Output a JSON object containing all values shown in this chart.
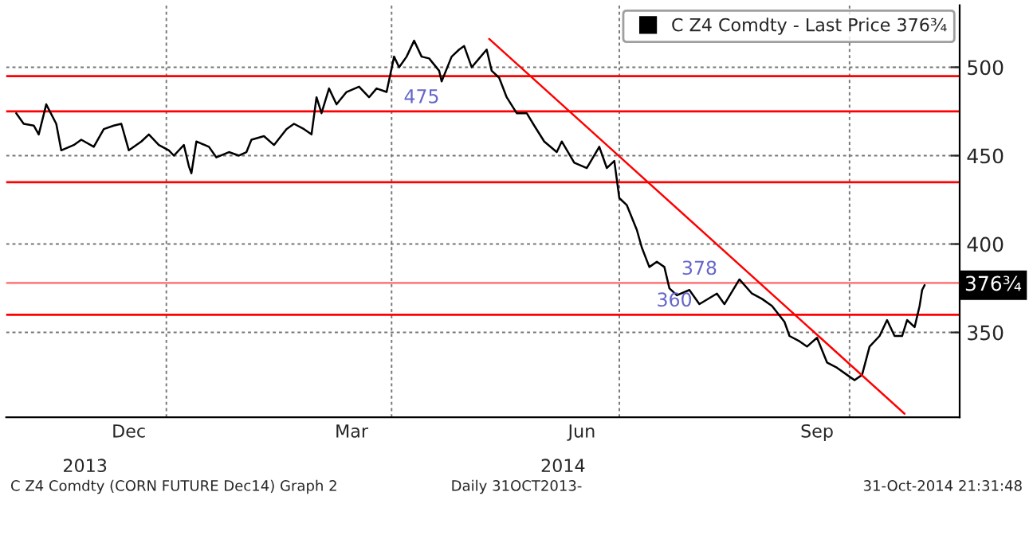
{
  "chart_data": {
    "type": "line",
    "xlim": [
      "2013-10-29",
      "2014-11-14"
    ],
    "ylim": [
      302,
      535
    ],
    "yticks": [
      350,
      400,
      450,
      500
    ],
    "xticks": [
      {
        "value": "2014-01-01",
        "label": null
      },
      {
        "value": "2014-04-01",
        "label": null
      },
      {
        "value": "2014-07-01",
        "label": null
      },
      {
        "value": "2014-10-01",
        "label": null
      },
      {
        "value": "2013-12-17",
        "label": "Dec"
      },
      {
        "value": "2014-03-16",
        "label": "Mar"
      },
      {
        "value": "2014-06-16",
        "label": "Jun"
      },
      {
        "value": "2014-09-18",
        "label": "Sep"
      }
    ],
    "grid": true,
    "legend": "top right",
    "series": [
      {
        "name": "C Z4 Comdty - Last Price 376¾",
        "color": "#000000",
        "x": [
          "2013-11-02",
          "2013-11-05",
          "2013-11-09",
          "2013-11-11",
          "2013-11-14",
          "2013-11-18",
          "2013-11-20",
          "2013-11-25",
          "2013-11-28",
          "2013-12-03",
          "2013-12-07",
          "2013-12-11",
          "2013-12-14",
          "2013-12-17",
          "2013-12-22",
          "2013-12-25",
          "2013-12-29",
          "2014-01-02",
          "2014-01-04",
          "2014-01-08",
          "2014-01-10",
          "2014-01-11",
          "2014-01-13",
          "2014-01-18",
          "2014-01-21",
          "2014-01-26",
          "2014-01-30",
          "2014-02-02",
          "2014-02-04",
          "2014-02-09",
          "2014-02-13",
          "2014-02-18",
          "2014-02-21",
          "2014-02-25",
          "2014-02-28",
          "2014-03-02",
          "2014-03-04",
          "2014-03-07",
          "2014-03-10",
          "2014-03-14",
          "2014-03-19",
          "2014-03-23",
          "2014-03-26",
          "2014-03-30",
          "2014-04-02",
          "2014-04-04",
          "2014-04-07",
          "2014-04-10",
          "2014-04-13",
          "2014-04-16",
          "2014-04-20",
          "2014-04-21",
          "2014-04-25",
          "2014-04-28",
          "2014-04-30",
          "2014-05-03",
          "2014-05-06",
          "2014-05-09",
          "2014-05-11",
          "2014-05-14",
          "2014-05-17",
          "2014-05-21",
          "2014-05-25",
          "2014-05-28",
          "2014-06-01",
          "2014-06-06",
          "2014-06-08",
          "2014-06-13",
          "2014-06-18",
          "2014-06-23",
          "2014-06-26",
          "2014-06-29",
          "2014-07-01",
          "2014-07-04",
          "2014-07-08",
          "2014-07-10",
          "2014-07-13",
          "2014-07-16",
          "2014-07-19",
          "2014-07-21",
          "2014-07-24",
          "2014-07-29",
          "2014-08-02",
          "2014-08-09",
          "2014-08-12",
          "2014-08-18",
          "2014-08-23",
          "2014-08-27",
          "2014-08-31",
          "2014-09-05",
          "2014-09-07",
          "2014-09-11",
          "2014-09-14",
          "2014-09-18",
          "2014-09-22",
          "2014-09-26",
          "2014-09-30",
          "2014-10-03",
          "2014-10-06",
          "2014-10-09",
          "2014-10-13",
          "2014-10-16",
          "2014-10-19",
          "2014-10-22",
          "2014-10-24",
          "2014-10-27",
          "2014-10-29",
          "2014-10-30",
          "2014-10-31"
        ],
        "values": [
          474,
          468,
          467,
          462,
          479,
          468,
          453,
          456,
          459,
          455,
          465,
          467,
          468,
          453,
          458,
          462,
          456,
          453,
          450,
          456,
          444,
          440,
          458,
          455,
          449,
          452,
          450,
          452,
          459,
          461,
          456,
          465,
          468,
          465,
          462,
          483,
          474,
          488,
          479,
          486,
          489,
          483,
          488,
          486,
          506,
          500,
          506,
          515,
          506,
          505,
          498,
          492,
          506,
          510,
          512,
          500,
          505,
          510,
          498,
          494,
          483,
          474,
          474,
          467,
          458,
          452,
          458,
          446,
          443,
          455,
          443,
          447,
          426,
          422,
          408,
          398,
          387,
          390,
          387,
          375,
          371,
          374,
          366,
          372,
          366,
          380,
          372,
          369,
          365,
          356,
          348,
          345,
          342,
          347,
          333,
          330,
          326,
          323,
          326,
          342,
          348,
          357,
          348,
          348,
          357,
          353,
          365,
          374,
          376.75
        ]
      },
      {
        "type": "line",
        "color": "#ff0000",
        "x": [
          "2014-05-10",
          "2014-10-23"
        ],
        "values": [
          516,
          304
        ]
      }
    ],
    "ref_lines": [
      {
        "axis": "y",
        "value": 495,
        "color": "#ff0000"
      },
      {
        "axis": "y",
        "value": 475,
        "color": "#ff0000"
      },
      {
        "axis": "y",
        "value": 435,
        "color": "#ff0000"
      },
      {
        "axis": "y",
        "value": 378,
        "color": "#ff8080"
      },
      {
        "axis": "y",
        "value": 360,
        "color": "#ff0000"
      }
    ],
    "annotations": [
      {
        "text": "475",
        "x": "2014-04-13",
        "y": 475
      },
      {
        "text": "378",
        "x": "2014-08-02",
        "y": 378
      },
      "2013",
      "2014",
      {
        "text": "360",
        "x": "2014-07-23",
        "y": 360
      },
      {
        "text": "376¾",
        "x": "2014-10-31",
        "y": 376.75
      },
      "C Z4 Comdty (CORN FUTURE Dec14) Graph 2",
      "Daily 31OCT2013-",
      "31-Oct-2014 21:31:48"
    ]
  }
}
